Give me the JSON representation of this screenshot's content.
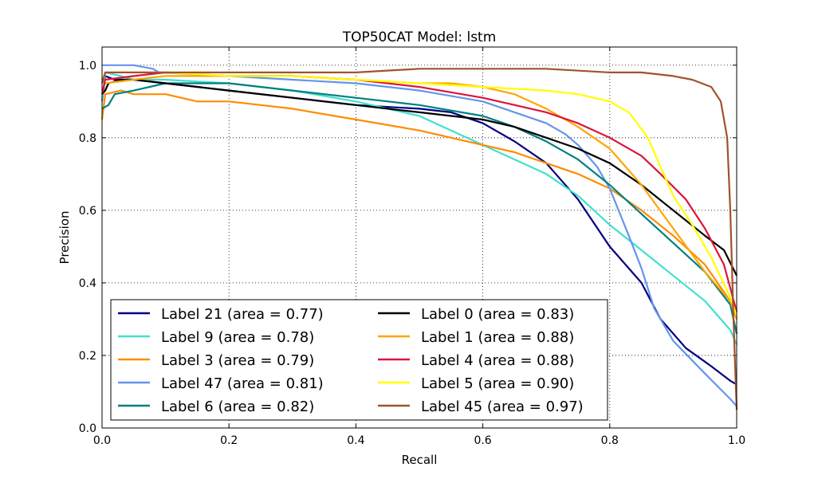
{
  "chart_data": {
    "type": "line",
    "title": "TOP50CAT Model: lstm",
    "xlabel": "Recall",
    "ylabel": "Precision",
    "xlim": [
      0.0,
      1.0
    ],
    "ylim": [
      0.0,
      1.05
    ],
    "grid": true,
    "xticks": [
      0.0,
      0.2,
      0.4,
      0.6,
      0.8,
      1.0
    ],
    "yticks": [
      0.0,
      0.2,
      0.4,
      0.6,
      0.8,
      1.0
    ],
    "xtick_labels": [
      "0.0",
      "0.2",
      "0.4",
      "0.6",
      "0.8",
      "1.0"
    ],
    "ytick_labels": [
      "0.0",
      "0.2",
      "0.4",
      "0.6",
      "0.8",
      "1.0"
    ],
    "legend_position": "lower-left",
    "series": [
      {
        "name": "Label 21 (area = 0.77)",
        "color": "#000080",
        "points": [
          [
            0,
            0.9
          ],
          [
            0.005,
            0.97
          ],
          [
            0.02,
            0.96
          ],
          [
            0.05,
            0.96
          ],
          [
            0.1,
            0.95
          ],
          [
            0.2,
            0.93
          ],
          [
            0.3,
            0.91
          ],
          [
            0.4,
            0.89
          ],
          [
            0.5,
            0.88
          ],
          [
            0.55,
            0.87
          ],
          [
            0.6,
            0.84
          ],
          [
            0.65,
            0.79
          ],
          [
            0.7,
            0.73
          ],
          [
            0.75,
            0.63
          ],
          [
            0.8,
            0.5
          ],
          [
            0.85,
            0.4
          ],
          [
            0.88,
            0.3
          ],
          [
            0.92,
            0.22
          ],
          [
            0.96,
            0.17
          ],
          [
            0.99,
            0.13
          ],
          [
            1.0,
            0.12
          ]
        ]
      },
      {
        "name": "Label 9 (area = 0.78)",
        "color": "#40e0d0",
        "points": [
          [
            0,
            0.9
          ],
          [
            0.005,
            0.98
          ],
          [
            0.03,
            0.97
          ],
          [
            0.05,
            0.96
          ],
          [
            0.1,
            0.96
          ],
          [
            0.2,
            0.95
          ],
          [
            0.3,
            0.93
          ],
          [
            0.4,
            0.9
          ],
          [
            0.5,
            0.86
          ],
          [
            0.55,
            0.82
          ],
          [
            0.6,
            0.78
          ],
          [
            0.65,
            0.74
          ],
          [
            0.7,
            0.7
          ],
          [
            0.75,
            0.64
          ],
          [
            0.8,
            0.56
          ],
          [
            0.85,
            0.49
          ],
          [
            0.9,
            0.42
          ],
          [
            0.95,
            0.35
          ],
          [
            0.99,
            0.27
          ],
          [
            1.0,
            0.23
          ]
        ]
      },
      {
        "name": "Label 3 (area = 0.79)",
        "color": "#ff8c00",
        "points": [
          [
            0,
            0.85
          ],
          [
            0.005,
            0.92
          ],
          [
            0.03,
            0.93
          ],
          [
            0.05,
            0.92
          ],
          [
            0.1,
            0.92
          ],
          [
            0.15,
            0.9
          ],
          [
            0.2,
            0.9
          ],
          [
            0.25,
            0.89
          ],
          [
            0.3,
            0.88
          ],
          [
            0.4,
            0.85
          ],
          [
            0.5,
            0.82
          ],
          [
            0.6,
            0.78
          ],
          [
            0.65,
            0.76
          ],
          [
            0.7,
            0.73
          ],
          [
            0.75,
            0.7
          ],
          [
            0.8,
            0.66
          ],
          [
            0.85,
            0.6
          ],
          [
            0.9,
            0.53
          ],
          [
            0.95,
            0.45
          ],
          [
            0.99,
            0.35
          ],
          [
            1.0,
            0.3
          ]
        ]
      },
      {
        "name": "Label 47 (area = 0.81)",
        "color": "#6495ed",
        "points": [
          [
            0,
            1.0
          ],
          [
            0.005,
            1.0
          ],
          [
            0.05,
            1.0
          ],
          [
            0.08,
            0.99
          ],
          [
            0.09,
            0.98
          ],
          [
            0.2,
            0.97
          ],
          [
            0.3,
            0.96
          ],
          [
            0.4,
            0.95
          ],
          [
            0.5,
            0.93
          ],
          [
            0.6,
            0.9
          ],
          [
            0.65,
            0.87
          ],
          [
            0.7,
            0.84
          ],
          [
            0.73,
            0.81
          ],
          [
            0.75,
            0.78
          ],
          [
            0.78,
            0.72
          ],
          [
            0.8,
            0.66
          ],
          [
            0.83,
            0.53
          ],
          [
            0.85,
            0.44
          ],
          [
            0.87,
            0.33
          ],
          [
            0.9,
            0.24
          ],
          [
            0.95,
            0.15
          ],
          [
            0.99,
            0.08
          ],
          [
            1.0,
            0.06
          ]
        ]
      },
      {
        "name": "Label 6 (area = 0.82)",
        "color": "#008080",
        "points": [
          [
            0,
            0.88
          ],
          [
            0.01,
            0.89
          ],
          [
            0.02,
            0.92
          ],
          [
            0.05,
            0.93
          ],
          [
            0.1,
            0.95
          ],
          [
            0.2,
            0.95
          ],
          [
            0.3,
            0.93
          ],
          [
            0.4,
            0.91
          ],
          [
            0.5,
            0.89
          ],
          [
            0.6,
            0.86
          ],
          [
            0.65,
            0.83
          ],
          [
            0.7,
            0.79
          ],
          [
            0.75,
            0.74
          ],
          [
            0.8,
            0.67
          ],
          [
            0.85,
            0.59
          ],
          [
            0.9,
            0.51
          ],
          [
            0.95,
            0.43
          ],
          [
            0.99,
            0.34
          ],
          [
            1.0,
            0.26
          ]
        ]
      },
      {
        "name": "Label 0 (area = 0.83)",
        "color": "#000000",
        "points": [
          [
            0,
            0.92
          ],
          [
            0.005,
            0.93
          ],
          [
            0.01,
            0.95
          ],
          [
            0.03,
            0.96
          ],
          [
            0.05,
            0.96
          ],
          [
            0.1,
            0.95
          ],
          [
            0.2,
            0.93
          ],
          [
            0.3,
            0.91
          ],
          [
            0.4,
            0.89
          ],
          [
            0.5,
            0.87
          ],
          [
            0.6,
            0.85
          ],
          [
            0.65,
            0.83
          ],
          [
            0.7,
            0.8
          ],
          [
            0.75,
            0.77
          ],
          [
            0.8,
            0.73
          ],
          [
            0.85,
            0.67
          ],
          [
            0.9,
            0.6
          ],
          [
            0.95,
            0.53
          ],
          [
            0.98,
            0.49
          ],
          [
            1.0,
            0.42
          ]
        ]
      },
      {
        "name": "Label 1 (area = 0.88)",
        "color": "#ffa500",
        "points": [
          [
            0,
            0.93
          ],
          [
            0.005,
            0.95
          ],
          [
            0.05,
            0.96
          ],
          [
            0.1,
            0.97
          ],
          [
            0.2,
            0.97
          ],
          [
            0.3,
            0.97
          ],
          [
            0.4,
            0.96
          ],
          [
            0.5,
            0.95
          ],
          [
            0.55,
            0.95
          ],
          [
            0.6,
            0.94
          ],
          [
            0.65,
            0.92
          ],
          [
            0.7,
            0.88
          ],
          [
            0.75,
            0.83
          ],
          [
            0.8,
            0.77
          ],
          [
            0.85,
            0.67
          ],
          [
            0.9,
            0.55
          ],
          [
            0.95,
            0.43
          ],
          [
            0.99,
            0.35
          ],
          [
            1.0,
            0.3
          ]
        ]
      },
      {
        "name": "Label 4 (area = 0.88)",
        "color": "#dc143c",
        "points": [
          [
            0,
            0.92
          ],
          [
            0.005,
            0.96
          ],
          [
            0.05,
            0.97
          ],
          [
            0.1,
            0.98
          ],
          [
            0.2,
            0.97
          ],
          [
            0.3,
            0.97
          ],
          [
            0.4,
            0.96
          ],
          [
            0.5,
            0.94
          ],
          [
            0.6,
            0.91
          ],
          [
            0.7,
            0.87
          ],
          [
            0.75,
            0.84
          ],
          [
            0.8,
            0.8
          ],
          [
            0.85,
            0.75
          ],
          [
            0.88,
            0.7
          ],
          [
            0.92,
            0.63
          ],
          [
            0.95,
            0.55
          ],
          [
            0.98,
            0.45
          ],
          [
            1.0,
            0.32
          ]
        ]
      },
      {
        "name": "Label 5 (area = 0.90)",
        "color": "#ffff00",
        "points": [
          [
            0,
            0.96
          ],
          [
            0.005,
            0.98
          ],
          [
            0.05,
            0.98
          ],
          [
            0.1,
            0.98
          ],
          [
            0.2,
            0.97
          ],
          [
            0.3,
            0.97
          ],
          [
            0.4,
            0.96
          ],
          [
            0.5,
            0.95
          ],
          [
            0.6,
            0.94
          ],
          [
            0.7,
            0.93
          ],
          [
            0.75,
            0.92
          ],
          [
            0.8,
            0.9
          ],
          [
            0.83,
            0.87
          ],
          [
            0.86,
            0.8
          ],
          [
            0.88,
            0.72
          ],
          [
            0.9,
            0.64
          ],
          [
            0.93,
            0.56
          ],
          [
            0.96,
            0.47
          ],
          [
            0.99,
            0.36
          ],
          [
            1.0,
            0.31
          ]
        ]
      },
      {
        "name": "Label 45 (area = 0.97)",
        "color": "#a0522d",
        "points": [
          [
            0,
            0.95
          ],
          [
            0.005,
            0.98
          ],
          [
            0.05,
            0.98
          ],
          [
            0.1,
            0.98
          ],
          [
            0.2,
            0.98
          ],
          [
            0.3,
            0.98
          ],
          [
            0.4,
            0.98
          ],
          [
            0.5,
            0.99
          ],
          [
            0.6,
            0.99
          ],
          [
            0.7,
            0.99
          ],
          [
            0.8,
            0.98
          ],
          [
            0.85,
            0.98
          ],
          [
            0.9,
            0.97
          ],
          [
            0.93,
            0.96
          ],
          [
            0.96,
            0.94
          ],
          [
            0.975,
            0.9
          ],
          [
            0.985,
            0.8
          ],
          [
            0.99,
            0.6
          ],
          [
            0.995,
            0.3
          ],
          [
            1.0,
            0.05
          ]
        ]
      }
    ]
  }
}
